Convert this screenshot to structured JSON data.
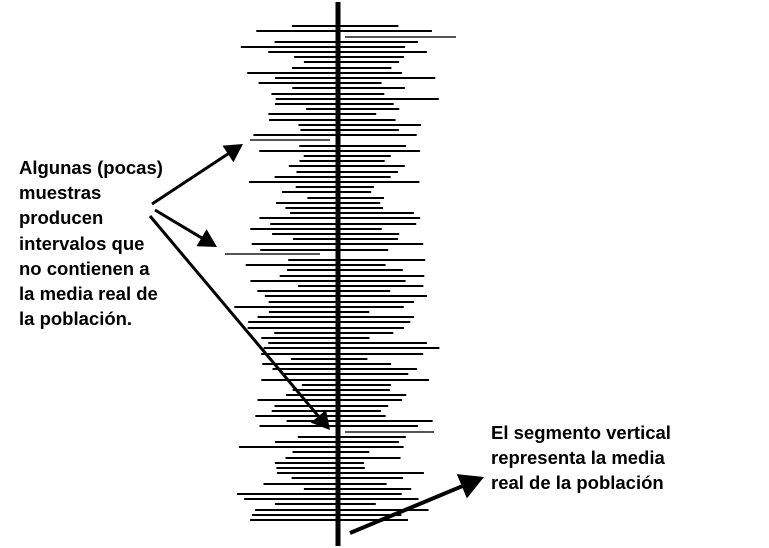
{
  "left_annotation": {
    "lines": [
      "Algunas (pocas)",
      "muestras",
      "producen",
      "intervalos que",
      "no contienen a",
      "la media real de",
      "la población."
    ]
  },
  "right_annotation": {
    "lines": [
      "El segmento vertical",
      "representa la media",
      "real de la población"
    ]
  },
  "colors": {
    "interval": "#000000",
    "interval_missing_mean": "#555555",
    "true_mean_line": "#000000",
    "arrow": "#000000",
    "background": "#ffffff"
  },
  "icons": [
    "arrow-icon"
  ]
}
